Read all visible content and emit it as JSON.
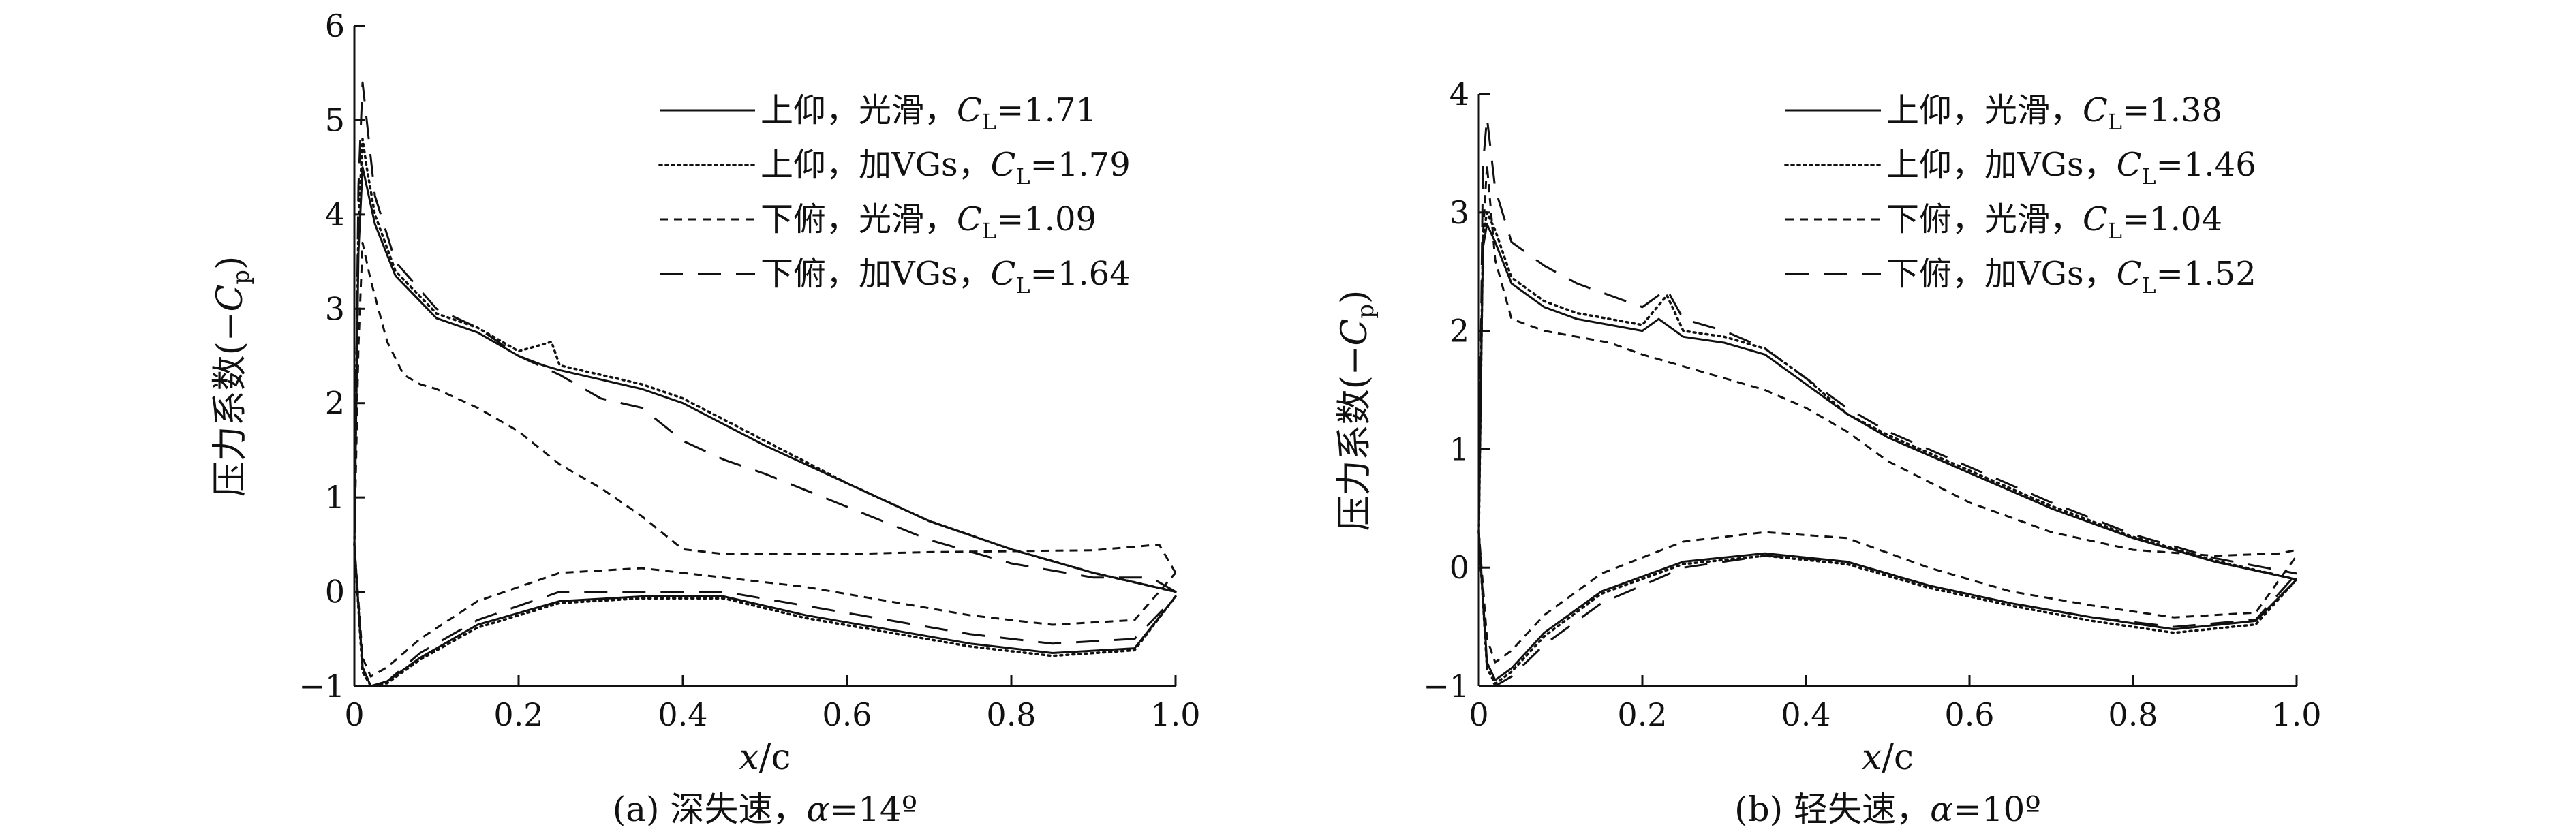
{
  "chart_data": [
    {
      "type": "line",
      "caption": "(a) 深失速，α=14º",
      "caption_prefix": "(a) 深失速，",
      "caption_alpha_symbol": "α",
      "caption_alpha_value": "=14º",
      "xlabel": "x/c",
      "xlabel_italic": "x",
      "xlabel_rest": "/c",
      "ylabel": "压力系数(−Cp)",
      "ylabel_prefix": "压力系数(−",
      "ylabel_symbol": "C",
      "ylabel_sub": "p",
      "ylabel_suffix": ")",
      "xlim": [
        0,
        1.0
      ],
      "ylim": [
        -1,
        6
      ],
      "xticks": [
        0,
        0.2,
        0.4,
        0.6,
        0.8,
        1.0
      ],
      "xtick_labels": [
        "0",
        "0.2",
        "0.4",
        "0.6",
        "0.8",
        "1.0"
      ],
      "yticks": [
        -1,
        0,
        1,
        2,
        3,
        4,
        5,
        6
      ],
      "ytick_labels": [
        "−1",
        "0",
        "1",
        "2",
        "3",
        "4",
        "5",
        "6"
      ],
      "legend_position": "top-right",
      "series": [
        {
          "name": "上仰，光滑，CL=1.71",
          "label_text": "上仰，光滑，",
          "cl_symbol": "C",
          "cl_sub": "L",
          "cl_value": "=1.71",
          "style": "solid",
          "upper": {
            "x": [
              0,
              0.005,
              0.01,
              0.015,
              0.025,
              0.05,
              0.1,
              0.15,
              0.2,
              0.23,
              0.25,
              0.3,
              0.35,
              0.4,
              0.5,
              0.6,
              0.7,
              0.8,
              0.9,
              1.0
            ],
            "y": [
              0.5,
              3.6,
              4.5,
              4.3,
              3.9,
              3.35,
              2.9,
              2.75,
              2.5,
              2.4,
              2.35,
              2.25,
              2.15,
              2.0,
              1.55,
              1.15,
              0.75,
              0.45,
              0.2,
              0.0
            ]
          },
          "lower": {
            "x": [
              0,
              0.01,
              0.02,
              0.04,
              0.08,
              0.15,
              0.25,
              0.35,
              0.45,
              0.55,
              0.65,
              0.75,
              0.85,
              0.95,
              1.0
            ],
            "y": [
              0.5,
              -0.8,
              -1.0,
              -0.95,
              -0.7,
              -0.35,
              -0.1,
              -0.05,
              -0.05,
              -0.25,
              -0.4,
              -0.55,
              -0.65,
              -0.6,
              -0.05
            ]
          }
        },
        {
          "name": "上仰，加VGs，CL=1.79",
          "label_text": "上仰，加VGs，",
          "cl_symbol": "C",
          "cl_sub": "L",
          "cl_value": "=1.79",
          "style": "dotted",
          "upper": {
            "x": [
              0,
              0.005,
              0.01,
              0.015,
              0.025,
              0.05,
              0.1,
              0.15,
              0.2,
              0.24,
              0.25,
              0.3,
              0.35,
              0.4,
              0.5,
              0.6,
              0.7,
              0.8,
              0.9,
              1.0
            ],
            "y": [
              0.5,
              3.9,
              4.8,
              4.5,
              4.0,
              3.4,
              2.95,
              2.8,
              2.55,
              2.65,
              2.4,
              2.3,
              2.2,
              2.05,
              1.6,
              1.15,
              0.75,
              0.45,
              0.2,
              0.0
            ]
          },
          "lower": {
            "x": [
              0,
              0.01,
              0.02,
              0.04,
              0.08,
              0.15,
              0.25,
              0.35,
              0.45,
              0.55,
              0.65,
              0.75,
              0.85,
              0.95,
              1.0
            ],
            "y": [
              0.5,
              -0.85,
              -1.0,
              -0.97,
              -0.72,
              -0.38,
              -0.12,
              -0.07,
              -0.07,
              -0.28,
              -0.43,
              -0.58,
              -0.68,
              -0.62,
              -0.05
            ]
          }
        },
        {
          "name": "下俯，光滑，CL=1.09",
          "label_text": "下俯，光滑，",
          "cl_symbol": "C",
          "cl_sub": "L",
          "cl_value": "=1.09",
          "style": "short-dash",
          "upper": {
            "x": [
              0,
              0.005,
              0.01,
              0.02,
              0.04,
              0.06,
              0.08,
              0.1,
              0.15,
              0.2,
              0.25,
              0.3,
              0.35,
              0.4,
              0.45,
              0.5,
              0.6,
              0.7,
              0.8,
              0.9,
              0.98,
              1.0
            ],
            "y": [
              0.5,
              2.6,
              3.7,
              3.3,
              2.65,
              2.3,
              2.2,
              2.15,
              1.95,
              1.7,
              1.35,
              1.1,
              0.8,
              0.45,
              0.4,
              0.4,
              0.4,
              0.42,
              0.43,
              0.44,
              0.5,
              0.2
            ]
          },
          "lower": {
            "x": [
              0,
              0.01,
              0.02,
              0.04,
              0.08,
              0.15,
              0.25,
              0.35,
              0.45,
              0.55,
              0.65,
              0.75,
              0.85,
              0.95,
              1.0
            ],
            "y": [
              0.5,
              -0.7,
              -0.9,
              -0.8,
              -0.5,
              -0.1,
              0.2,
              0.25,
              0.15,
              0.05,
              -0.1,
              -0.25,
              -0.35,
              -0.3,
              0.2
            ]
          }
        },
        {
          "name": "下俯，加VGs，CL=1.64",
          "label_text": "下俯，加VGs，",
          "cl_symbol": "C",
          "cl_sub": "L",
          "cl_value": "=1.64",
          "style": "long-dash",
          "upper": {
            "x": [
              0,
              0.005,
              0.01,
              0.015,
              0.025,
              0.05,
              0.1,
              0.15,
              0.2,
              0.25,
              0.3,
              0.35,
              0.4,
              0.45,
              0.5,
              0.6,
              0.7,
              0.8,
              0.9,
              0.97,
              1.0
            ],
            "y": [
              0.5,
              4.3,
              5.4,
              5.0,
              4.2,
              3.5,
              3.0,
              2.8,
              2.5,
              2.3,
              2.05,
              1.95,
              1.6,
              1.4,
              1.25,
              0.9,
              0.55,
              0.3,
              0.15,
              0.15,
              0.0
            ]
          },
          "lower": {
            "x": [
              0,
              0.01,
              0.02,
              0.04,
              0.08,
              0.15,
              0.25,
              0.35,
              0.45,
              0.55,
              0.65,
              0.75,
              0.85,
              0.95,
              1.0
            ],
            "y": [
              0.5,
              -0.8,
              -1.0,
              -0.95,
              -0.65,
              -0.3,
              0.0,
              0.0,
              0.0,
              -0.15,
              -0.3,
              -0.45,
              -0.55,
              -0.5,
              -0.05
            ]
          }
        }
      ]
    },
    {
      "type": "line",
      "caption": "(b) 轻失速，α=10º",
      "caption_prefix": "(b) 轻失速，",
      "caption_alpha_symbol": "α",
      "caption_alpha_value": "=10º",
      "xlabel": "x/c",
      "xlabel_italic": "x",
      "xlabel_rest": "/c",
      "ylabel": "压力系数(−Cp)",
      "ylabel_prefix": "压力系数(−",
      "ylabel_symbol": "C",
      "ylabel_sub": "p",
      "ylabel_suffix": ")",
      "xlim": [
        0,
        1.0
      ],
      "ylim": [
        -1,
        4
      ],
      "xticks": [
        0,
        0.2,
        0.4,
        0.6,
        0.8,
        1.0
      ],
      "xtick_labels": [
        "0",
        "0.2",
        "0.4",
        "0.6",
        "0.8",
        "1.0"
      ],
      "yticks": [
        -1,
        0,
        1,
        2,
        3,
        4
      ],
      "ytick_labels": [
        "−1",
        "0",
        "1",
        "2",
        "3",
        "4"
      ],
      "legend_position": "top-right",
      "series": [
        {
          "name": "上仰，光滑，CL=1.38",
          "label_text": "上仰，光滑，",
          "cl_symbol": "C",
          "cl_sub": "L",
          "cl_value": "=1.38",
          "style": "solid",
          "upper": {
            "x": [
              0,
              0.005,
              0.01,
              0.02,
              0.04,
              0.08,
              0.12,
              0.16,
              0.2,
              0.22,
              0.25,
              0.3,
              0.35,
              0.4,
              0.45,
              0.5,
              0.6,
              0.7,
              0.8,
              0.9,
              1.0
            ],
            "y": [
              0.3,
              2.7,
              2.9,
              2.75,
              2.4,
              2.2,
              2.1,
              2.05,
              2.0,
              2.1,
              1.95,
              1.9,
              1.8,
              1.55,
              1.3,
              1.1,
              0.8,
              0.5,
              0.25,
              0.05,
              -0.1
            ]
          },
          "lower": {
            "x": [
              0,
              0.01,
              0.02,
              0.04,
              0.08,
              0.15,
              0.25,
              0.35,
              0.45,
              0.55,
              0.65,
              0.75,
              0.85,
              0.95,
              1.0
            ],
            "y": [
              0.3,
              -0.8,
              -0.95,
              -0.85,
              -0.55,
              -0.2,
              0.05,
              0.12,
              0.05,
              -0.15,
              -0.3,
              -0.42,
              -0.52,
              -0.45,
              -0.1
            ]
          }
        },
        {
          "name": "上仰，加VGs，CL=1.46",
          "label_text": "上仰，加VGs，",
          "cl_symbol": "C",
          "cl_sub": "L",
          "cl_value": "=1.46",
          "style": "dotted",
          "upper": {
            "x": [
              0,
              0.005,
              0.01,
              0.02,
              0.04,
              0.08,
              0.12,
              0.16,
              0.2,
              0.23,
              0.25,
              0.3,
              0.35,
              0.4,
              0.45,
              0.5,
              0.6,
              0.7,
              0.8,
              0.9,
              1.0
            ],
            "y": [
              0.3,
              2.8,
              3.0,
              2.85,
              2.45,
              2.25,
              2.15,
              2.1,
              2.05,
              2.3,
              2.0,
              1.95,
              1.85,
              1.6,
              1.3,
              1.12,
              0.82,
              0.52,
              0.26,
              0.06,
              -0.1
            ]
          },
          "lower": {
            "x": [
              0,
              0.01,
              0.02,
              0.04,
              0.08,
              0.15,
              0.25,
              0.35,
              0.45,
              0.55,
              0.65,
              0.75,
              0.85,
              0.95,
              1.0
            ],
            "y": [
              0.3,
              -0.85,
              -0.98,
              -0.88,
              -0.58,
              -0.22,
              0.03,
              0.1,
              0.03,
              -0.17,
              -0.32,
              -0.45,
              -0.55,
              -0.48,
              -0.1
            ]
          }
        },
        {
          "name": "下俯，光滑，CL=1.04",
          "label_text": "下俯，光滑，",
          "cl_symbol": "C",
          "cl_sub": "L",
          "cl_value": "=1.04",
          "style": "short-dash",
          "upper": {
            "x": [
              0,
              0.005,
              0.01,
              0.02,
              0.04,
              0.08,
              0.12,
              0.16,
              0.2,
              0.25,
              0.3,
              0.35,
              0.4,
              0.45,
              0.5,
              0.6,
              0.7,
              0.8,
              0.9,
              0.98,
              1.0
            ],
            "y": [
              0.3,
              2.8,
              3.4,
              2.6,
              2.1,
              2.0,
              1.95,
              1.9,
              1.8,
              1.7,
              1.6,
              1.5,
              1.35,
              1.15,
              0.9,
              0.55,
              0.3,
              0.15,
              0.1,
              0.12,
              0.15
            ]
          },
          "lower": {
            "x": [
              0,
              0.01,
              0.02,
              0.04,
              0.08,
              0.15,
              0.25,
              0.35,
              0.45,
              0.55,
              0.65,
              0.75,
              0.85,
              0.95,
              1.0
            ],
            "y": [
              0.3,
              -0.6,
              -0.8,
              -0.7,
              -0.4,
              -0.05,
              0.22,
              0.3,
              0.25,
              0.0,
              -0.2,
              -0.32,
              -0.42,
              -0.38,
              0.1
            ]
          }
        },
        {
          "name": "下俯，加VGs，CL=1.52",
          "label_text": "下俯，加VGs，",
          "cl_symbol": "C",
          "cl_sub": "L",
          "cl_value": "=1.52",
          "style": "long-dash",
          "upper": {
            "x": [
              0,
              0.005,
              0.01,
              0.02,
              0.04,
              0.08,
              0.12,
              0.16,
              0.2,
              0.23,
              0.25,
              0.3,
              0.35,
              0.4,
              0.45,
              0.5,
              0.6,
              0.7,
              0.8,
              0.9,
              1.0
            ],
            "y": [
              0.3,
              3.4,
              3.8,
              3.2,
              2.75,
              2.55,
              2.4,
              2.3,
              2.2,
              2.35,
              2.1,
              2.0,
              1.85,
              1.6,
              1.35,
              1.15,
              0.85,
              0.55,
              0.28,
              0.08,
              -0.05
            ]
          },
          "lower": {
            "x": [
              0,
              0.01,
              0.02,
              0.04,
              0.08,
              0.15,
              0.25,
              0.35,
              0.45,
              0.55,
              0.65,
              0.75,
              0.85,
              0.95,
              1.0
            ],
            "y": [
              0.3,
              -0.85,
              -1.0,
              -0.92,
              -0.65,
              -0.3,
              0.0,
              0.1,
              0.05,
              -0.15,
              -0.3,
              -0.42,
              -0.5,
              -0.44,
              -0.05
            ]
          }
        }
      ]
    }
  ]
}
